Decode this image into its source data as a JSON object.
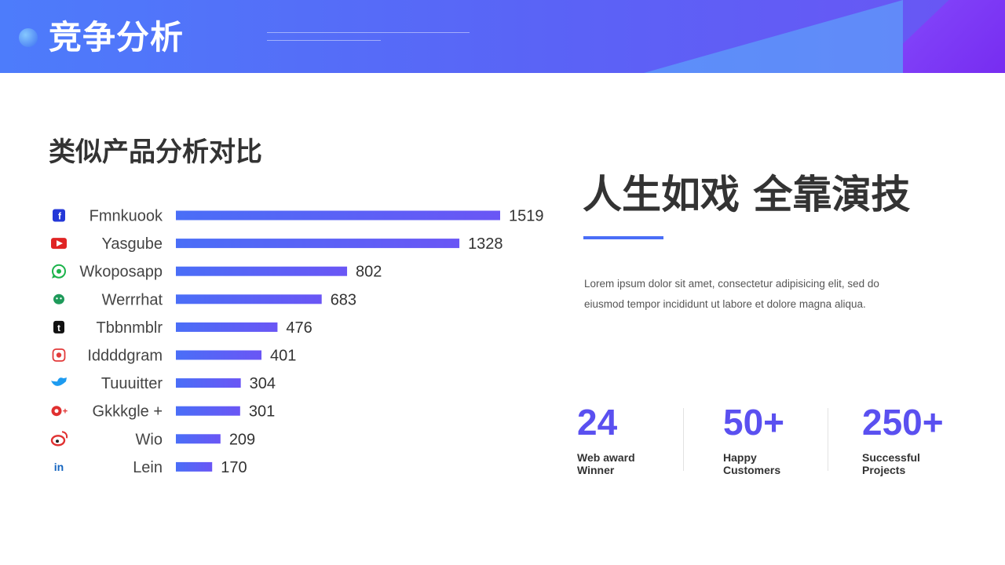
{
  "header": {
    "title": "竞争分析"
  },
  "section": {
    "title": "类似产品分析对比"
  },
  "chart_data": {
    "type": "bar",
    "orientation": "horizontal",
    "categories": [
      "Fmnkuook",
      "Yasgube",
      "Wkoposapp",
      "Werrrhat",
      "Tbbnmblr",
      "Iddddgram",
      "Tuuuitter",
      "Gkkkgle +",
      "Wio",
      "Lein"
    ],
    "values": [
      1519,
      1328,
      802,
      683,
      476,
      401,
      304,
      301,
      209,
      170
    ],
    "icons": [
      "facebook-icon",
      "youtube-icon",
      "whatsapp-icon",
      "wechat-icon",
      "tumblr-icon",
      "instagram-icon",
      "twitter-icon",
      "google-plus-icon",
      "weibo-icon",
      "linkedin-icon"
    ],
    "icon_colors": [
      "#2438d8",
      "#e02424",
      "#1bb34a",
      "#1e9a5a",
      "#111111",
      "#e23a3a",
      "#1d9bf0",
      "#e03030",
      "#e03030",
      "#1565c0"
    ],
    "bar_gradient": [
      "#4a6ef7",
      "#6a56f5"
    ],
    "xlim": [
      0,
      1519
    ],
    "title": "类似产品分析对比"
  },
  "slogan": {
    "text": "人生如戏 全靠演技"
  },
  "description": "Lorem ipsum dolor sit amet, consectetur adipisicing elit, sed do eiusmod tempor incididunt ut labore et dolore magna aliqua.",
  "stats": [
    {
      "value": "24",
      "line1": "Web award",
      "line2": "Winner"
    },
    {
      "value": "50+",
      "line1": "Happy",
      "line2": "Customers"
    },
    {
      "value": "250+",
      "line1": "Successful",
      "line2": "Projects"
    }
  ],
  "colors": {
    "accent": "#4a6ef7",
    "stat": "#5a50f0",
    "header_start": "#4d7cfb",
    "header_end": "#6a55f4"
  }
}
